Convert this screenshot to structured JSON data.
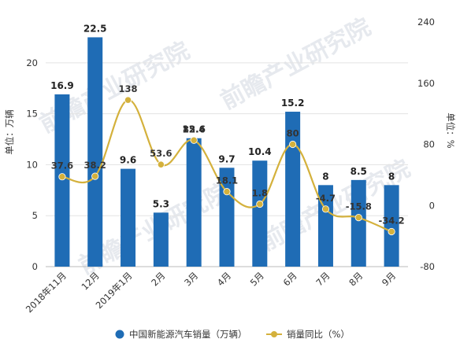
{
  "chart_data": {
    "type": "bar+line",
    "categories": [
      "2018年11月",
      "12月",
      "2019年1月",
      "2月",
      "3月",
      "4月",
      "5月",
      "6月",
      "7月",
      "8月",
      "9月"
    ],
    "series": [
      {
        "name": "中国新能源汽车销量（万辆）",
        "type": "bar",
        "axis": "left",
        "color": "#1f6cb5",
        "values": [
          16.9,
          22.5,
          9.6,
          5.3,
          12.6,
          9.7,
          10.4,
          15.2,
          8,
          8.5,
          8
        ],
        "labels": [
          "16.9",
          "22.5",
          "9.6",
          "5.3",
          "12.6",
          "9.7",
          "10.4",
          "15.2",
          "8",
          "8.5",
          "8"
        ]
      },
      {
        "name": "销量同比（%）",
        "type": "line",
        "axis": "right",
        "color": "#d4b13c",
        "values": [
          37.6,
          38.2,
          138,
          53.6,
          85.4,
          18.1,
          1.8,
          80,
          -4.7,
          -15.8,
          -34.2
        ],
        "labels": [
          "37.6",
          "38.2",
          "138",
          "53.6",
          "85.4",
          "18.1",
          "1.8",
          "80",
          "-4.7",
          "-15.8",
          "-34.2"
        ]
      }
    ],
    "y_left": {
      "label": "单位：万辆",
      "ylim": [
        0,
        24
      ],
      "ticks": [
        "0",
        "5",
        "10",
        "15",
        "20"
      ],
      "tick_values": [
        0,
        5,
        10,
        15,
        20
      ]
    },
    "y_right": {
      "label": "单位：%",
      "ylim": [
        -80,
        240
      ],
      "ticks": [
        "-80",
        "0",
        "80",
        "160",
        "240"
      ],
      "tick_values": [
        -80,
        0,
        80,
        160,
        240
      ]
    },
    "grid": true,
    "legend_position": "bottom"
  },
  "watermark": "前瞻产业研究院"
}
